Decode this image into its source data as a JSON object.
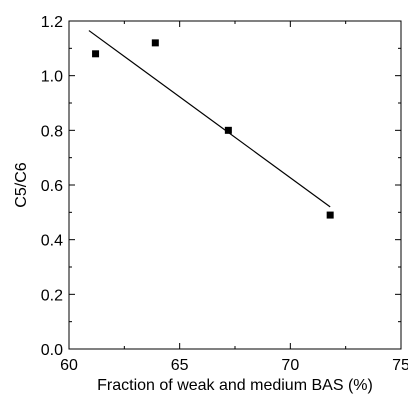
{
  "chart_data": {
    "type": "scatter",
    "title": "",
    "xlabel": "Fraction of weak and medium BAS (%)",
    "ylabel": "C5/C6",
    "xlim": [
      60,
      75
    ],
    "ylim": [
      0.0,
      1.2
    ],
    "x_major_ticks": [
      60,
      65,
      70,
      75
    ],
    "x_tick_labels": [
      "60",
      "65",
      "70",
      "75"
    ],
    "y_major_ticks": [
      0.0,
      0.2,
      0.4,
      0.6,
      0.8,
      1.0,
      1.2
    ],
    "y_tick_labels": [
      "0.0",
      "0.2",
      "0.4",
      "0.6",
      "0.8",
      "1.0",
      "1.2"
    ],
    "grid": false,
    "series": [
      {
        "marker": "square",
        "color": "#000000",
        "points": [
          {
            "x": 61.2,
            "y": 1.08
          },
          {
            "x": 63.9,
            "y": 1.12
          },
          {
            "x": 67.2,
            "y": 0.8
          },
          {
            "x": 71.8,
            "y": 0.49
          }
        ]
      }
    ],
    "fit_line": {
      "color": "#000000",
      "points": [
        {
          "x": 60.9,
          "y": 1.165
        },
        {
          "x": 71.8,
          "y": 0.52
        }
      ]
    }
  }
}
